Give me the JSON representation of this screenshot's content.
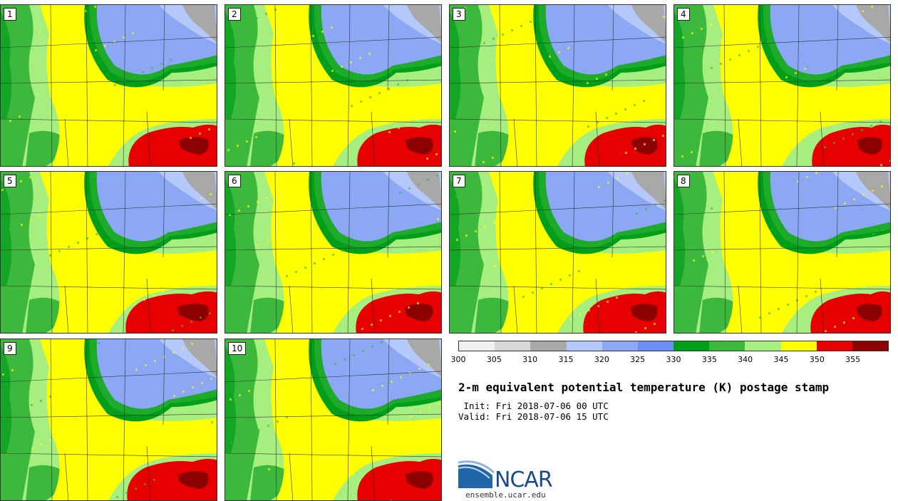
{
  "panels": [
    {
      "label": "1"
    },
    {
      "label": "2"
    },
    {
      "label": "3"
    },
    {
      "label": "4"
    },
    {
      "label": "5"
    },
    {
      "label": "6"
    },
    {
      "label": "7"
    },
    {
      "label": "8"
    },
    {
      "label": "9"
    },
    {
      "label": "10"
    }
  ],
  "colorbar": {
    "colors": [
      "#f0f0f0",
      "#d8d8d8",
      "#a8a8a8",
      "#b4c8fb",
      "#8ca8f5",
      "#6e8ef7",
      "#009e19",
      "#3cb83c",
      "#a6ee7f",
      "#ffff00",
      "#e60000",
      "#8b0000"
    ],
    "ticks": [
      "300",
      "305",
      "310",
      "315",
      "320",
      "325",
      "330",
      "335",
      "340",
      "345",
      "350",
      "355"
    ]
  },
  "title": "2-m equivalent potential temperature (K) postage stamp",
  "init": " Init: Fri 2018-07-06 00 UTC",
  "valid": "Valid: Fri 2018-07-06 15 UTC",
  "logo": {
    "name": "NCAR",
    "url": "ensemble.ucar.edu"
  }
}
